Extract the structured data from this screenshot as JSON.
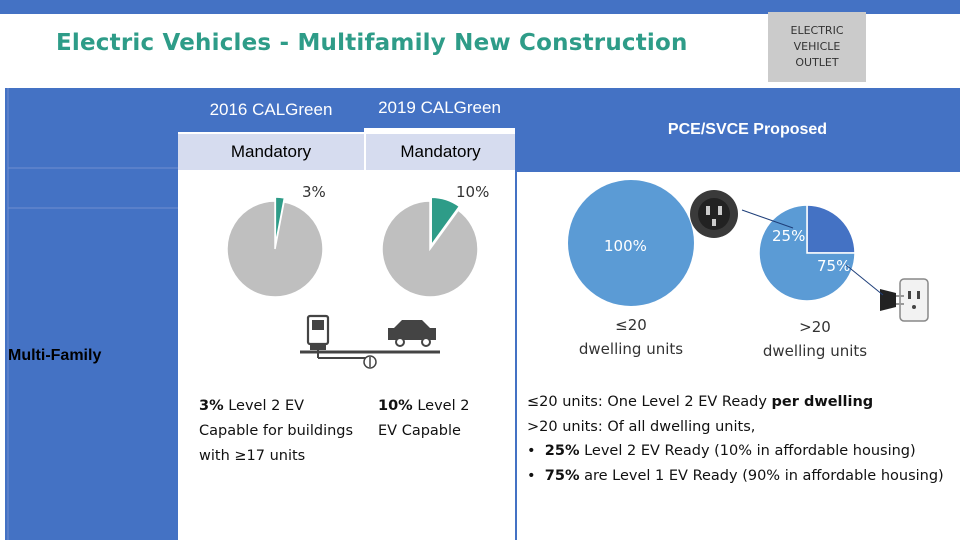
{
  "slide": {
    "title": "Electric Vehicles - Multifamily New Construction",
    "outlet_label_lines": [
      "ELECTRIC",
      "VEHICLE",
      "OUTLET"
    ]
  },
  "columns": {
    "calgreen_2016": {
      "header": "2016 CALGreen",
      "status": "Mandatory",
      "percent_label": "3%"
    },
    "calgreen_2019": {
      "header": "2019 CALGreen",
      "status": "Mandatory",
      "percent_label": "10%"
    },
    "proposed": {
      "header": "PCE/SVCE Proposed"
    }
  },
  "row_label": "Multi-Family",
  "chart_data": [
    {
      "type": "pie",
      "values": [
        3,
        97
      ],
      "labels": [
        "3%",
        ""
      ],
      "colors": [
        "#2e9c88",
        "#bfbfbf"
      ]
    },
    {
      "type": "pie",
      "values": [
        10,
        90
      ],
      "labels": [
        "10%",
        ""
      ],
      "colors": [
        "#2e9c88",
        "#bfbfbf"
      ]
    },
    {
      "type": "pie",
      "values": [
        100
      ],
      "labels": [
        "100%"
      ],
      "colors": [
        "#5b9bd5"
      ]
    },
    {
      "type": "pie",
      "values": [
        25,
        75
      ],
      "labels": [
        "25%",
        "75%"
      ],
      "colors": [
        "#4472c4",
        "#5b9bd5"
      ]
    }
  ],
  "proposed_pies": {
    "small": {
      "percent_label": "100%",
      "unit_line1": "≤20",
      "unit_line2": "dwelling units"
    },
    "large": {
      "level2_label": "25%",
      "level1_label": "75%",
      "unit_line1": ">20",
      "unit_line2": "dwelling units"
    }
  },
  "notes": {
    "calgreen_2016": {
      "bold": "3%",
      "rest": "Level 2 EV",
      "line2": "Capable for buildings",
      "line3": "with ≥17 units"
    },
    "calgreen_2019": {
      "bold": "10%",
      "rest": "Level 2",
      "line2": "EV Capable"
    },
    "proposed": {
      "line1_pre": "≤20 units: One Level 2 EV Ready ",
      "line1_bold": "per dwelling",
      "line2": ">20 units: Of all dwelling units,",
      "bullet1_bold": "25%",
      "bullet1_rest": " Level 2 EV Ready (10% in affordable housing)",
      "bullet2_bold": "75%",
      "bullet2_rest": " are Level 1 EV Ready  (90% in affordable housing)"
    }
  },
  "colors": {
    "accent": "#2e9c88",
    "header_blue": "#4472c4",
    "light_blue": "#5b9bd5",
    "pie_grey": "#bfbfbf"
  }
}
